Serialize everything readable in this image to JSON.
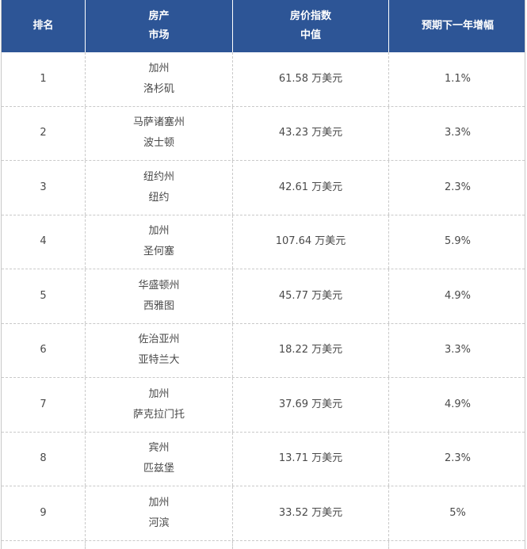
{
  "table": {
    "header_bg": "#2d5596",
    "headers": [
      {
        "line1": "排名",
        "line2": ""
      },
      {
        "line1": "房产",
        "line2": "市场"
      },
      {
        "line1": "房价指数",
        "line2": "中值"
      },
      {
        "line1": "预期下一年增幅",
        "line2": ""
      }
    ],
    "rows": [
      {
        "rank": "1",
        "state": "加州",
        "city": "洛杉矶",
        "price": "61.58 万美元",
        "growth": "1.1%"
      },
      {
        "rank": "2",
        "state": "马萨诸塞州",
        "city": "波士顿",
        "price": "43.23 万美元",
        "growth": "3.3%"
      },
      {
        "rank": "3",
        "state": "纽约州",
        "city": "纽约",
        "price": "42.61 万美元",
        "growth": "2.3%"
      },
      {
        "rank": "4",
        "state": "加州",
        "city": "圣何塞",
        "price": "107.64 万美元",
        "growth": "5.9%"
      },
      {
        "rank": "5",
        "state": "华盛顿州",
        "city": "西雅图",
        "price": "45.77 万美元",
        "growth": "4.9%"
      },
      {
        "rank": "6",
        "state": "佐治亚州",
        "city": "亚特兰大",
        "price": "18.22 万美元",
        "growth": "3.3%"
      },
      {
        "rank": "7",
        "state": "加州",
        "city": "萨克拉门托",
        "price": "37.69 万美元",
        "growth": "4.9%"
      },
      {
        "rank": "8",
        "state": "宾州",
        "city": "匹兹堡",
        "price": "13.71 万美元",
        "growth": "2.3%"
      },
      {
        "rank": "9",
        "state": "加州",
        "city": "河滨",
        "price": "33.52 万美元",
        "growth": "5%"
      }
    ]
  }
}
